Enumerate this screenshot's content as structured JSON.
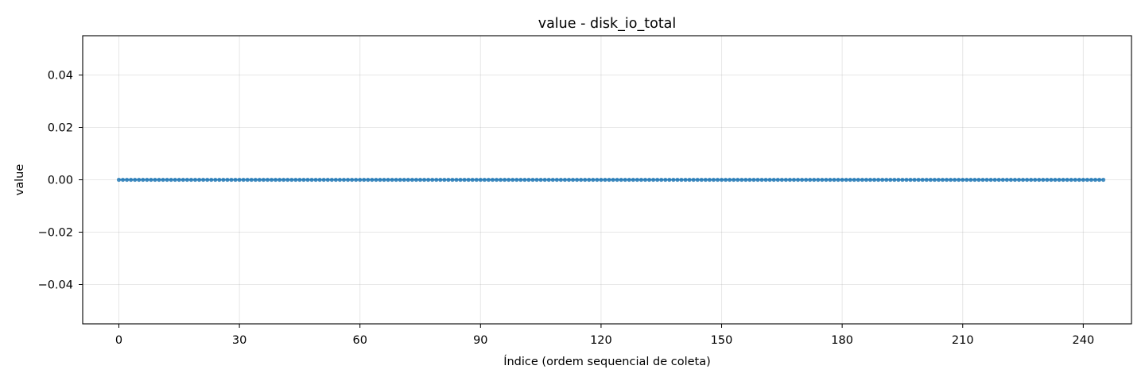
{
  "chart_data": {
    "type": "line",
    "title": "value - disk_io_total",
    "xlabel": "Índice (ordem sequencial de coleta)",
    "ylabel": "value",
    "xlim": [
      -9,
      252
    ],
    "ylim": [
      -0.055,
      0.055
    ],
    "xticks": [
      0,
      30,
      60,
      90,
      120,
      150,
      180,
      210,
      240
    ],
    "xtick_labels": [
      "0",
      "30",
      "60",
      "90",
      "120",
      "150",
      "180",
      "210",
      "240"
    ],
    "yticks": [
      -0.04,
      -0.02,
      0.0,
      0.02,
      0.04
    ],
    "ytick_labels": [
      "−0.04",
      "−0.02",
      "0.00",
      "0.02",
      "0.04"
    ],
    "grid": true,
    "marker": "circle",
    "series": [
      {
        "color": "#1f77b4",
        "x_start": 0,
        "x_end": 245,
        "x_step": 1,
        "y_constant": 0.0
      }
    ]
  }
}
